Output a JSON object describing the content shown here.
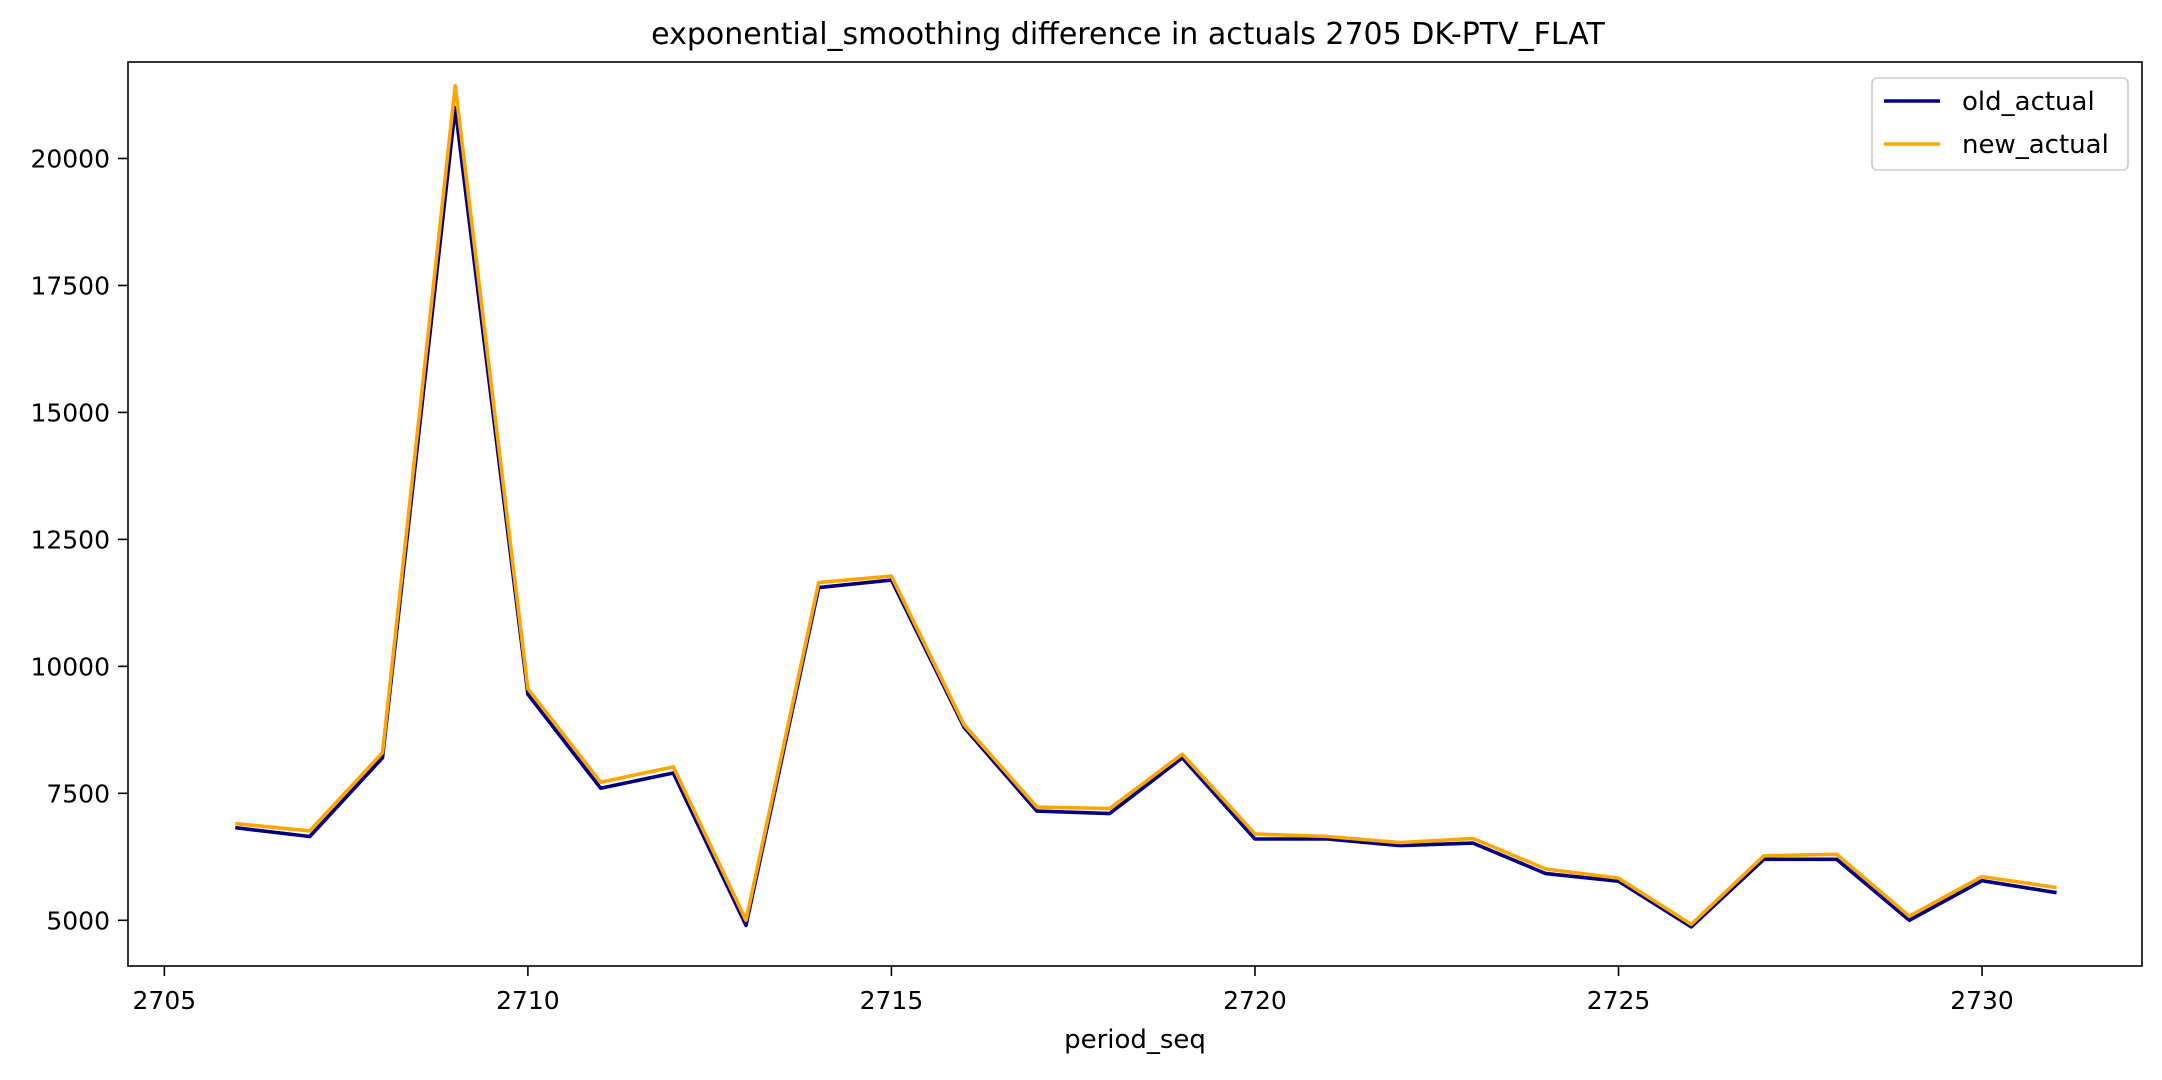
{
  "chart_data": {
    "type": "line",
    "title": "exponential_smoothing difference in actuals 2705 DK-PTV_FLAT",
    "xlabel": "period_seq",
    "ylabel": "",
    "xlim": [
      2704.5,
      2732.2
    ],
    "ylim": [
      4100,
      21900
    ],
    "x_ticks": [
      2705,
      2710,
      2715,
      2720,
      2725,
      2730
    ],
    "y_ticks": [
      5000,
      7500,
      10000,
      12500,
      15000,
      17500,
      20000
    ],
    "grid": false,
    "legend_position": "top-right",
    "x": [
      2706,
      2707,
      2708,
      2709,
      2710,
      2711,
      2712,
      2713,
      2714,
      2715,
      2716,
      2717,
      2718,
      2719,
      2720,
      2721,
      2722,
      2723,
      2724,
      2725,
      2726,
      2727,
      2728,
      2729,
      2730,
      2731
    ],
    "series": [
      {
        "name": "old_actual",
        "color": "#000080",
        "values": [
          6820,
          6650,
          8200,
          21000,
          9450,
          7600,
          7900,
          4900,
          11550,
          11700,
          8800,
          7150,
          7100,
          8200,
          6600,
          6600,
          6470,
          6520,
          5920,
          5770,
          4870,
          6200,
          6200,
          5000,
          5780,
          5550
        ]
      },
      {
        "name": "new_actual",
        "color": "#ffa500",
        "values": [
          6900,
          6760,
          8300,
          21430,
          9560,
          7720,
          8020,
          5000,
          11650,
          11780,
          8850,
          7230,
          7200,
          8270,
          6700,
          6650,
          6530,
          6610,
          6010,
          5830,
          4920,
          6270,
          6300,
          5080,
          5860,
          5650
        ]
      }
    ]
  }
}
